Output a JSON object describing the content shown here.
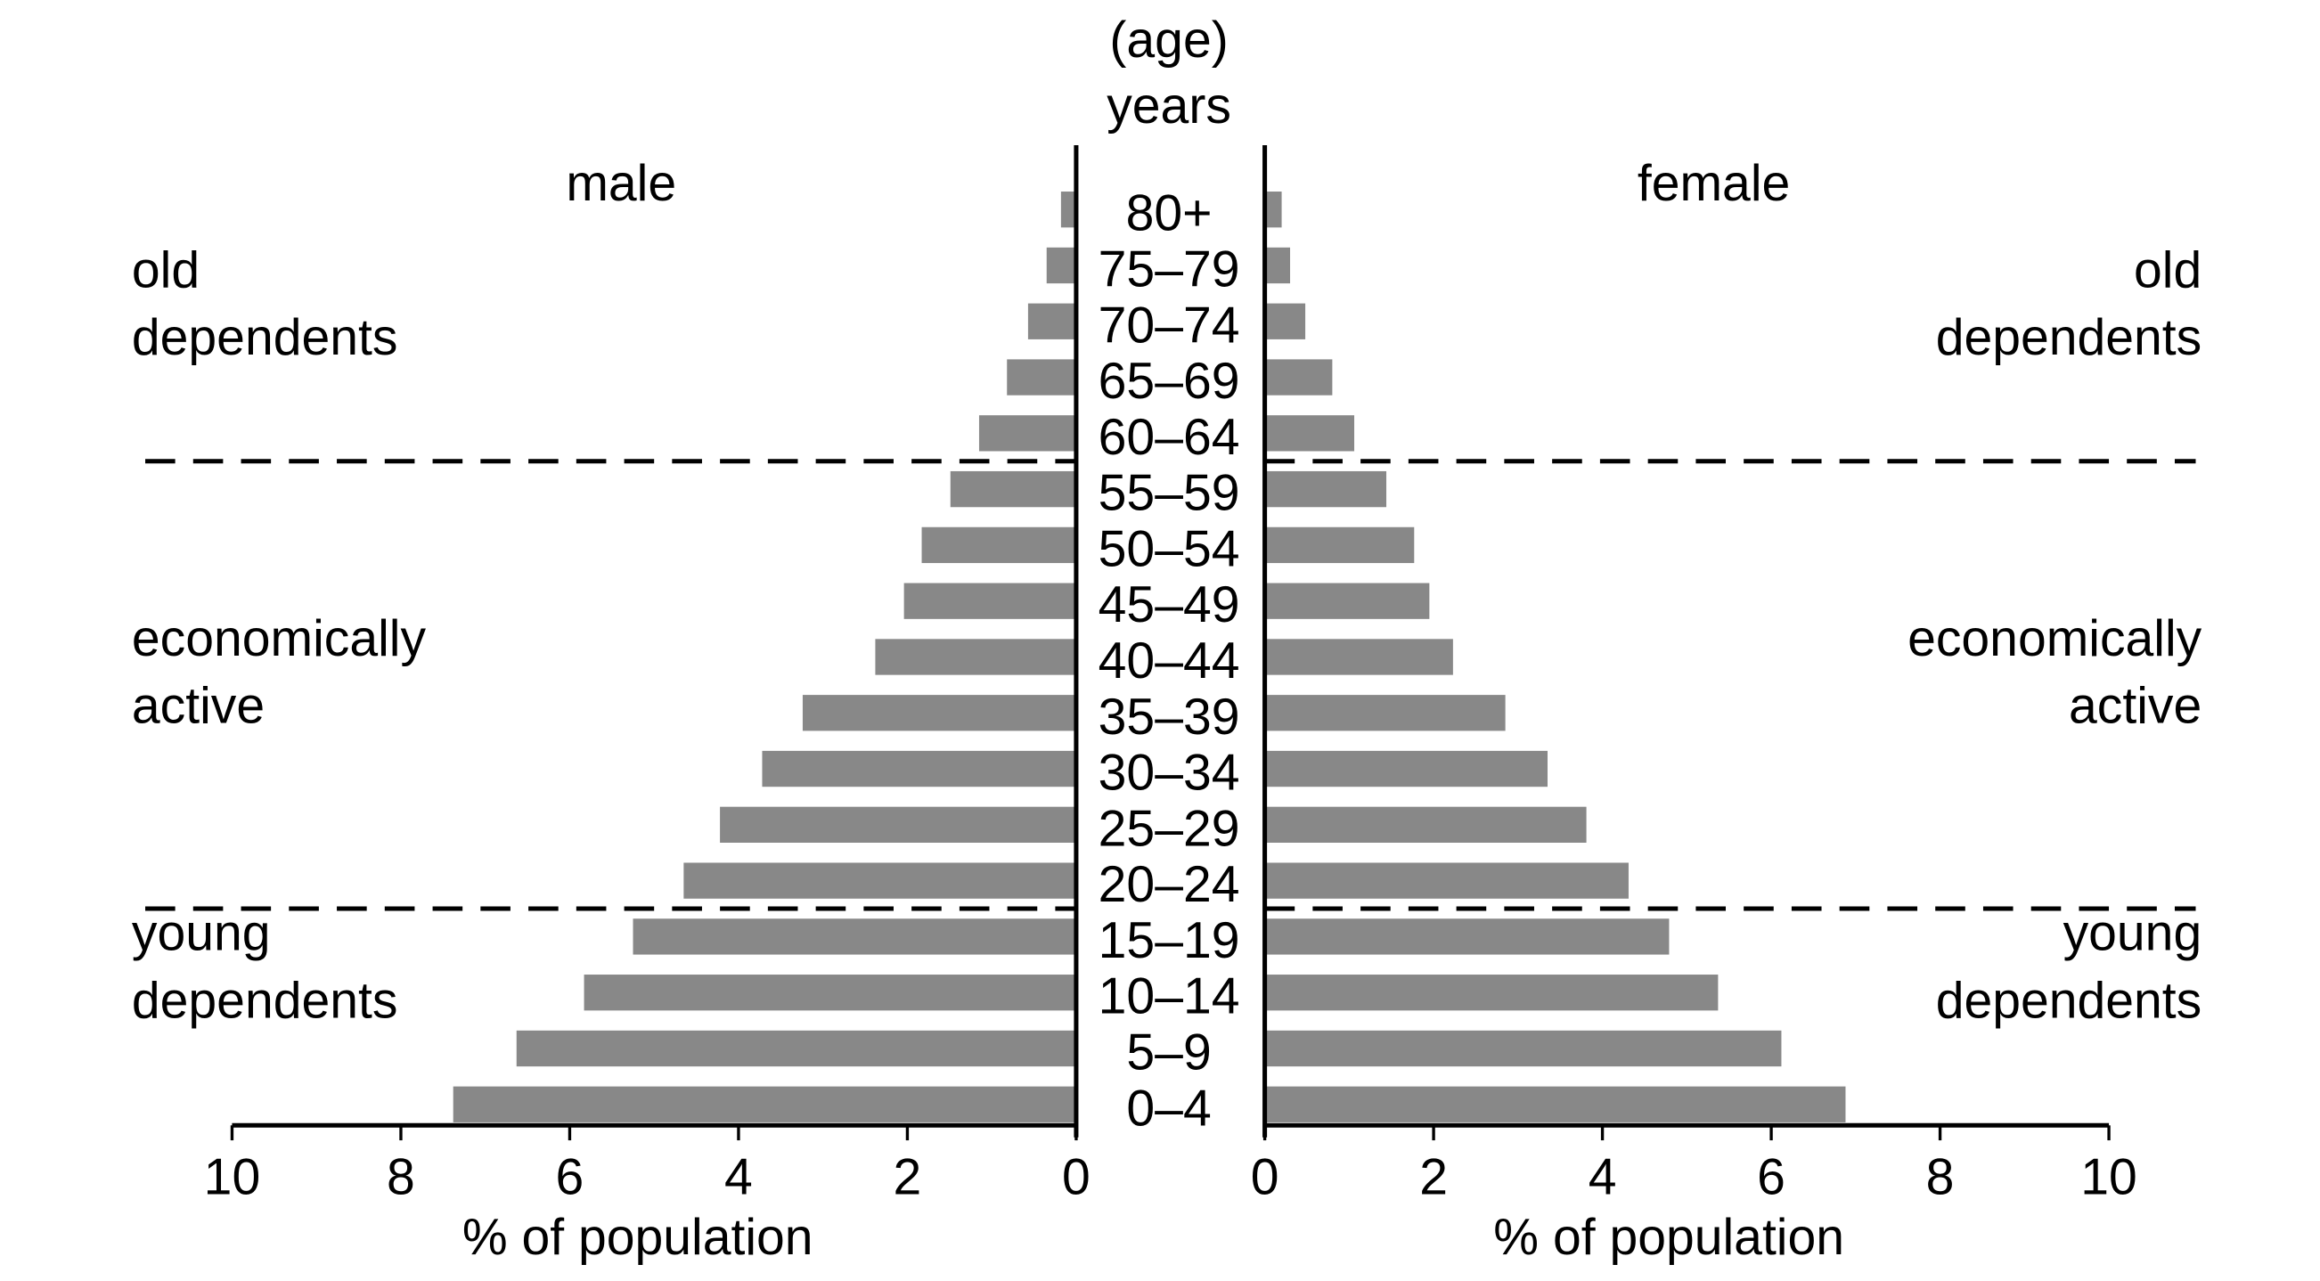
{
  "chart_data": {
    "type": "bar",
    "title": "(age) years",
    "title_line1": "(age)",
    "title_line2": "years",
    "categories": [
      "80+",
      "75–79",
      "70–74",
      "65–69",
      "60–64",
      "55–59",
      "50–54",
      "45–49",
      "40–44",
      "35–39",
      "30–34",
      "25–29",
      "20–24",
      "15–19",
      "10–14",
      "5–9",
      "0–4"
    ],
    "series": [
      {
        "name": "male",
        "values": [
          0.18,
          0.35,
          0.57,
          0.82,
          1.15,
          1.49,
          1.83,
          2.04,
          2.38,
          3.24,
          3.72,
          4.22,
          4.65,
          5.25,
          5.83,
          6.63,
          7.38
        ]
      },
      {
        "name": "female",
        "values": [
          0.2,
          0.3,
          0.48,
          0.8,
          1.06,
          1.44,
          1.77,
          1.95,
          2.23,
          2.85,
          3.35,
          3.81,
          4.31,
          4.79,
          5.37,
          6.12,
          6.88
        ]
      }
    ],
    "xlabel": "% of population",
    "xlim": [
      0,
      10
    ],
    "xticks": [
      "0",
      "2",
      "4",
      "6",
      "8",
      "10"
    ],
    "bar_color": "#888888",
    "grid": false,
    "annotations": {
      "old": [
        "old",
        "dependents"
      ],
      "active": [
        "economically",
        "active"
      ],
      "young": [
        "young",
        "dependents"
      ]
    },
    "divider_after_categories": [
      "60–64",
      "20–24"
    ]
  }
}
